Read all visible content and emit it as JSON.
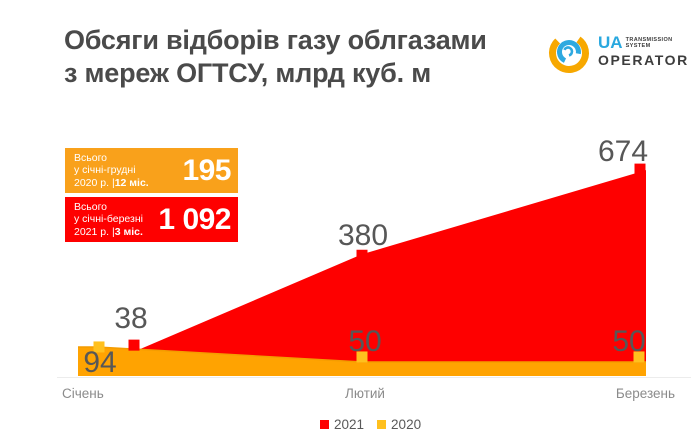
{
  "header": {
    "title_line1": "Обсяги відборів газу облгазами",
    "title_line2": "з мереж ОГТСУ, млрд куб. м"
  },
  "logo": {
    "ua": "UA",
    "word1": "TRANSMISSION",
    "word2": "SYSTEM",
    "operator": "OPERATOR"
  },
  "totals": {
    "box2020": {
      "line1": "Всього",
      "line2": "у січні-грудні",
      "line3_normal": "2020 р. |",
      "line3_bold": "12 міс.",
      "value": "195",
      "color": "#F9A11B"
    },
    "box2021": {
      "line1": "Всього",
      "line2": "у січні-березні",
      "line3_normal": "2021 р. |",
      "line3_bold": "3 міс.",
      "value": "1 092",
      "color": "#FE0000"
    }
  },
  "chart_data": {
    "type": "area",
    "title": "Обсяги відборів газу облгазами з мереж ОГТСУ, млрд куб. м",
    "xlabel": "",
    "ylabel": "млрд куб. м",
    "categories": [
      "Січень",
      "Лютий",
      "Березень"
    ],
    "series": [
      {
        "name": "2021",
        "values": [
          38,
          380,
          674
        ],
        "color": "#FE0000",
        "marker_color": "#FE0000"
      },
      {
        "name": "2020",
        "values": [
          94,
          50,
          50
        ],
        "color": "#FFA301",
        "marker_color": "#FFC01E"
      }
    ],
    "legend_position": "bottom",
    "grid": false,
    "axis_line_color": "#ECECEC",
    "label_color": "#575757"
  }
}
